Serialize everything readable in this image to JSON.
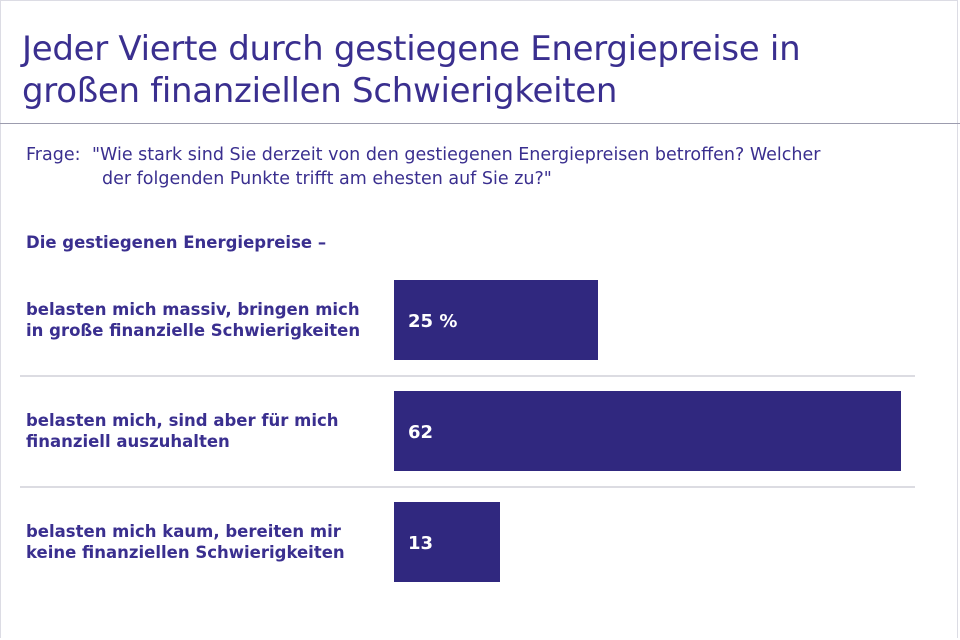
{
  "title": "Jeder Vierte durch gestiegene Energiepreise in großen finanziellen Schwierigkeiten",
  "question": {
    "prefix": "Frage:",
    "line1": "\"Wie stark sind Sie derzeit von den gestiegenen Energiepreisen betroffen? Welcher",
    "line2": "der folgenden Punkte trifft am ehesten auf Sie zu?\""
  },
  "section_label": "Die gestiegenen Energiepreise –",
  "colors": {
    "bar": "#30287f",
    "text": "#3a2f8f",
    "divider": "#b9b9c4"
  },
  "chart_data": {
    "type": "bar",
    "orientation": "horizontal",
    "categories": [
      [
        "belasten mich massiv, bringen mich",
        "in große finanzielle Schwierigkeiten"
      ],
      [
        "belasten mich, sind aber für mich",
        "finanziell auszuhalten"
      ],
      [
        "belasten mich kaum, bereiten mir",
        "keine finanziellen Schwierigkeiten"
      ]
    ],
    "values": [
      25,
      62,
      13
    ],
    "value_labels": [
      "25 %",
      "62",
      "13"
    ],
    "unit": "%",
    "xlim": [
      0,
      62
    ]
  }
}
